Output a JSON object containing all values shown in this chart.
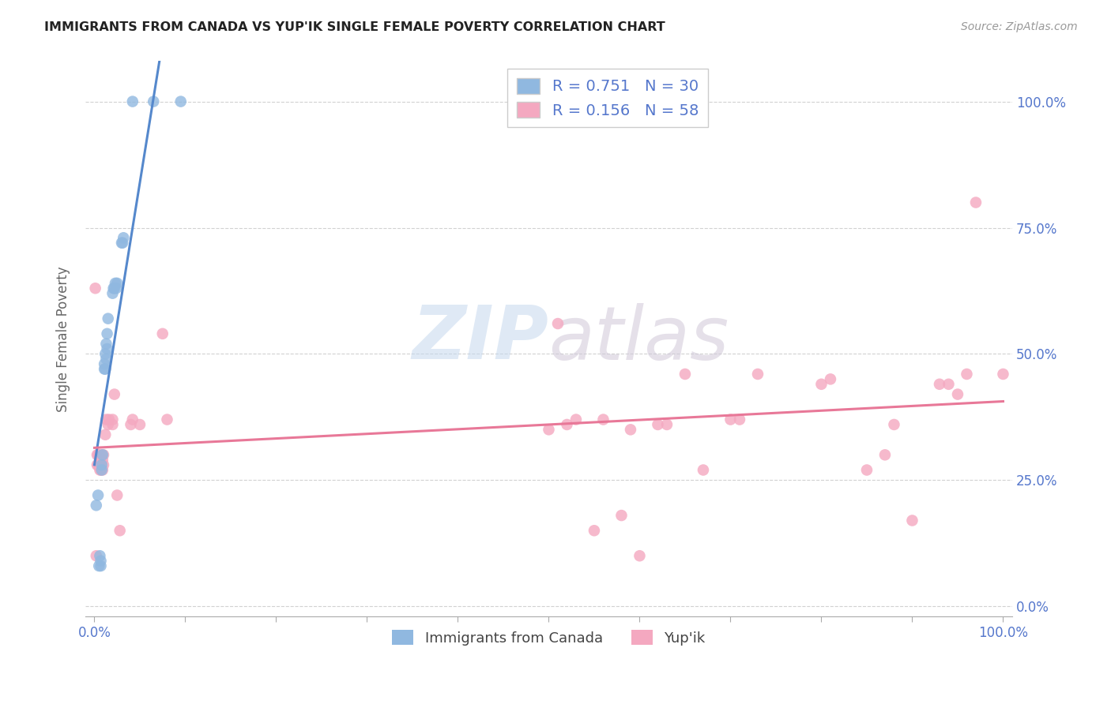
{
  "title": "IMMIGRANTS FROM CANADA VS YUP'IK SINGLE FEMALE POVERTY CORRELATION CHART",
  "source": "Source: ZipAtlas.com",
  "ylabel": "Single Female Poverty",
  "watermark": "ZIPatlas",
  "blue_color": "#90b8e0",
  "pink_color": "#f4a8c0",
  "blue_line_color": "#5588cc",
  "pink_line_color": "#e87898",
  "tick_label_color": "#5577cc",
  "background_color": "#ffffff",
  "grid_color": "#cccccc",
  "title_color": "#222222",
  "source_color": "#999999",
  "blue_points": [
    [
      0.002,
      0.2
    ],
    [
      0.004,
      0.22
    ],
    [
      0.005,
      0.08
    ],
    [
      0.006,
      0.1
    ],
    [
      0.007,
      0.08
    ],
    [
      0.007,
      0.09
    ],
    [
      0.008,
      0.27
    ],
    [
      0.008,
      0.28
    ],
    [
      0.009,
      0.3
    ],
    [
      0.011,
      0.47
    ],
    [
      0.011,
      0.48
    ],
    [
      0.012,
      0.47
    ],
    [
      0.012,
      0.5
    ],
    [
      0.013,
      0.49
    ],
    [
      0.013,
      0.52
    ],
    [
      0.014,
      0.51
    ],
    [
      0.014,
      0.54
    ],
    [
      0.015,
      0.57
    ],
    [
      0.02,
      0.62
    ],
    [
      0.021,
      0.63
    ],
    [
      0.022,
      0.63
    ],
    [
      0.023,
      0.64
    ],
    [
      0.024,
      0.63
    ],
    [
      0.025,
      0.64
    ],
    [
      0.03,
      0.72
    ],
    [
      0.031,
      0.72
    ],
    [
      0.032,
      0.73
    ],
    [
      0.042,
      1.0
    ],
    [
      0.065,
      1.0
    ],
    [
      0.095,
      1.0
    ]
  ],
  "pink_points": [
    [
      0.001,
      0.63
    ],
    [
      0.002,
      0.1
    ],
    [
      0.003,
      0.3
    ],
    [
      0.003,
      0.28
    ],
    [
      0.004,
      0.28
    ],
    [
      0.004,
      0.3
    ],
    [
      0.005,
      0.28
    ],
    [
      0.005,
      0.3
    ],
    [
      0.006,
      0.27
    ],
    [
      0.006,
      0.29
    ],
    [
      0.007,
      0.27
    ],
    [
      0.008,
      0.3
    ],
    [
      0.009,
      0.27
    ],
    [
      0.009,
      0.29
    ],
    [
      0.01,
      0.28
    ],
    [
      0.01,
      0.3
    ],
    [
      0.012,
      0.34
    ],
    [
      0.013,
      0.37
    ],
    [
      0.015,
      0.36
    ],
    [
      0.016,
      0.37
    ],
    [
      0.02,
      0.36
    ],
    [
      0.02,
      0.37
    ],
    [
      0.022,
      0.42
    ],
    [
      0.025,
      0.22
    ],
    [
      0.028,
      0.15
    ],
    [
      0.04,
      0.36
    ],
    [
      0.042,
      0.37
    ],
    [
      0.05,
      0.36
    ],
    [
      0.075,
      0.54
    ],
    [
      0.08,
      0.37
    ],
    [
      0.5,
      0.35
    ],
    [
      0.51,
      0.56
    ],
    [
      0.52,
      0.36
    ],
    [
      0.53,
      0.37
    ],
    [
      0.55,
      0.15
    ],
    [
      0.56,
      0.37
    ],
    [
      0.58,
      0.18
    ],
    [
      0.59,
      0.35
    ],
    [
      0.6,
      0.1
    ],
    [
      0.62,
      0.36
    ],
    [
      0.63,
      0.36
    ],
    [
      0.65,
      0.46
    ],
    [
      0.67,
      0.27
    ],
    [
      0.7,
      0.37
    ],
    [
      0.71,
      0.37
    ],
    [
      0.73,
      0.46
    ],
    [
      0.8,
      0.44
    ],
    [
      0.81,
      0.45
    ],
    [
      0.85,
      0.27
    ],
    [
      0.87,
      0.3
    ],
    [
      0.88,
      0.36
    ],
    [
      0.9,
      0.17
    ],
    [
      0.93,
      0.44
    ],
    [
      0.94,
      0.44
    ],
    [
      0.95,
      0.42
    ],
    [
      0.96,
      0.46
    ],
    [
      0.97,
      0.8
    ],
    [
      1.0,
      0.46
    ]
  ]
}
